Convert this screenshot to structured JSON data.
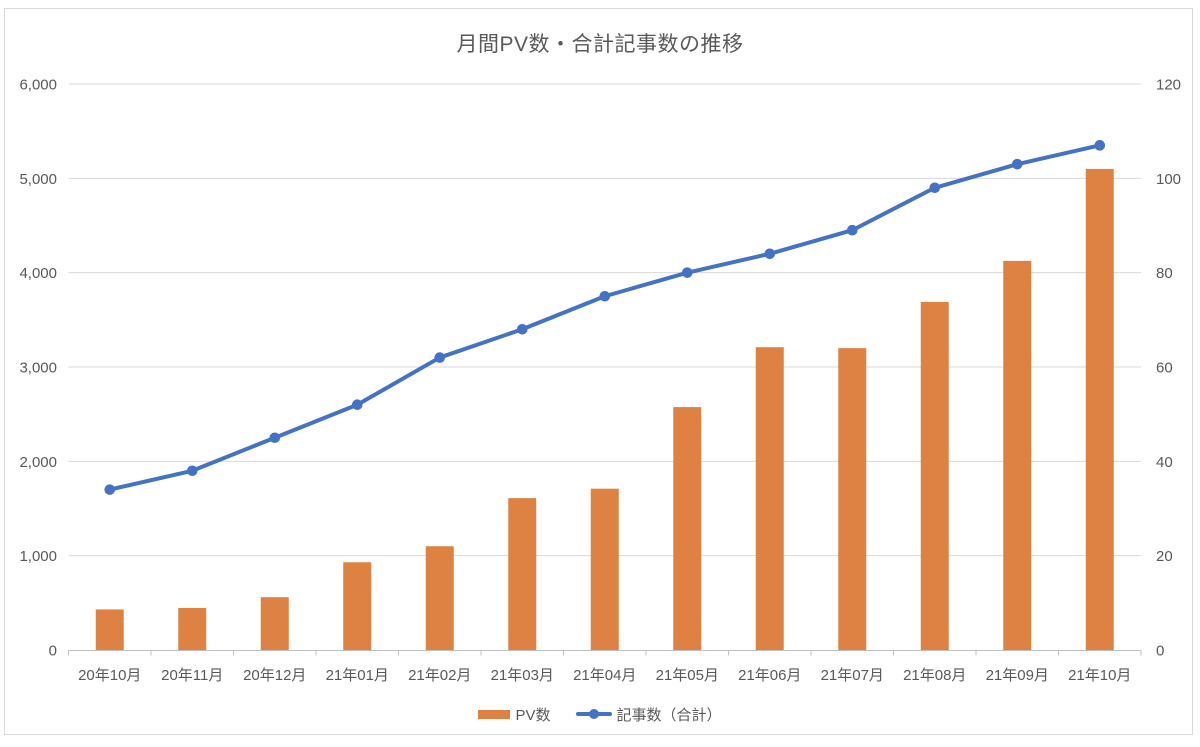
{
  "chart": {
    "title": "月間PV数・合計記事数の推移",
    "legend": {
      "pv_label": "PV数",
      "articles_label": "記事数（合計）"
    }
  },
  "chart_data": {
    "type": "combo-bar-line",
    "title": "月間PV数・合計記事数の推移",
    "categories": [
      "20年10月",
      "20年11月",
      "20年12月",
      "21年01月",
      "21年02月",
      "21年03月",
      "21年04月",
      "21年05月",
      "21年06月",
      "21年07月",
      "21年08月",
      "21年09月",
      "21年10月"
    ],
    "series": [
      {
        "name": "PV数",
        "type": "bar",
        "axis": "left",
        "color": "#DE8244",
        "values": [
          430,
          445,
          560,
          930,
          1100,
          1610,
          1710,
          2575,
          3210,
          3200,
          3690,
          4125,
          5100
        ]
      },
      {
        "name": "記事数（合計）",
        "type": "line",
        "axis": "right",
        "color": "#4472C4",
        "values": [
          34,
          38,
          45,
          52,
          62,
          68,
          75,
          80,
          84,
          89,
          98,
          103,
          107
        ]
      }
    ],
    "left_axis": {
      "min": 0,
      "max": 6000,
      "step": 1000,
      "ticks": [
        "0",
        "1,000",
        "2,000",
        "3,000",
        "4,000",
        "5,000",
        "6,000"
      ]
    },
    "right_axis": {
      "min": 0,
      "max": 120,
      "step": 20,
      "ticks": [
        "0",
        "20",
        "40",
        "60",
        "80",
        "100",
        "120"
      ]
    },
    "grid": "horizontal",
    "legend_position": "bottom",
    "colors": {
      "grid": "#D9D9D9",
      "axis": "#BFBFBF",
      "text": "#595959",
      "background": "#FFFFFF"
    }
  }
}
